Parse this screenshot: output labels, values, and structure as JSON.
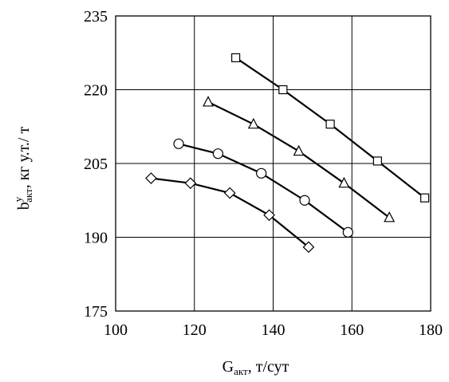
{
  "chart_data": {
    "type": "line",
    "xlabel": {
      "main": "G",
      "sub": "акт",
      "rest": ", т/сут"
    },
    "ylabel": {
      "main": "b",
      "sup": "у",
      "sub": "акт",
      "rest": ", кг у.т./ т"
    },
    "xlim": [
      100,
      180
    ],
    "ylim": [
      175,
      235
    ],
    "x_ticks": [
      "100",
      "120",
      "140",
      "160",
      "180"
    ],
    "y_ticks": [
      "175",
      "190",
      "205",
      "220",
      "235"
    ],
    "grid": true,
    "legend": "none",
    "series": [
      {
        "marker": "diamond",
        "x": [
          109,
          119,
          129,
          139,
          149
        ],
        "y": [
          202,
          201,
          199,
          194.5,
          188
        ]
      },
      {
        "marker": "circle",
        "x": [
          116,
          126,
          137,
          148,
          159
        ],
        "y": [
          209,
          207,
          203,
          197.5,
          191
        ]
      },
      {
        "marker": "triangle",
        "x": [
          123.5,
          135,
          146.5,
          158,
          169.5
        ],
        "y": [
          217.5,
          213,
          207.5,
          201,
          194
        ]
      },
      {
        "marker": "square",
        "x": [
          130.5,
          142.5,
          154.5,
          166.5,
          178.5
        ],
        "y": [
          226.5,
          220,
          213,
          205.5,
          198
        ]
      }
    ]
  }
}
